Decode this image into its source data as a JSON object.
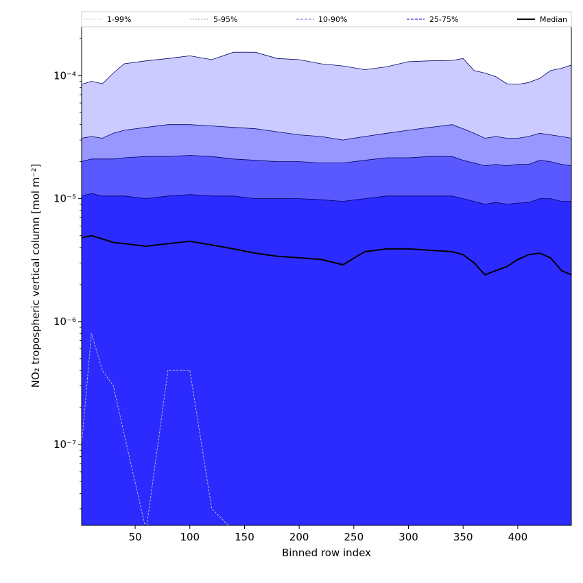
{
  "chart_data": {
    "type": "area",
    "xlabel": "Binned row index",
    "ylabel": "NO₂ tropospheric vertical column [mol m⁻²]",
    "xlim": [
      1,
      449
    ],
    "ylim": [
      2.2e-08,
      0.00025
    ],
    "yscale": "log",
    "x_ticks": [
      50,
      100,
      150,
      200,
      250,
      300,
      350,
      400
    ],
    "x_tick_labels": [
      "50",
      "100",
      "150",
      "200",
      "250",
      "300",
      "350",
      "400"
    ],
    "y_ticks": [
      1e-07,
      1e-06,
      1e-05,
      0.0001
    ],
    "y_tick_labels": [
      "10⁻⁷",
      "10⁻⁶",
      "10⁻⁵",
      "10⁻⁴"
    ],
    "grid": false,
    "legend_position": "top",
    "x_samples": [
      1,
      10,
      20,
      30,
      40,
      60,
      80,
      100,
      120,
      140,
      160,
      180,
      200,
      220,
      240,
      260,
      280,
      300,
      320,
      340,
      350,
      360,
      370,
      380,
      390,
      400,
      410,
      420,
      430,
      440,
      449
    ],
    "series": [
      {
        "name": "1-99%",
        "color": "#cbcbff",
        "line_color": "#bbbbbb",
        "upper": [
          8.5e-05,
          9e-05,
          8.6e-05,
          0.000105,
          0.000125,
          0.000132,
          0.000138,
          0.000145,
          0.000135,
          0.000155,
          0.000155,
          0.000138,
          0.000135,
          0.000125,
          0.00012,
          0.000112,
          0.000118,
          0.00013,
          0.000132,
          0.000133,
          0.000138,
          0.00011,
          0.000105,
          9.8e-05,
          8.6e-05,
          8.5e-05,
          8.8e-05,
          9.5e-05,
          0.00011,
          0.000115,
          0.000122
        ],
        "lower": [
          1e-07,
          8e-07,
          4e-07,
          3e-07,
          1.2e-07,
          2e-08,
          4e-07,
          4e-07,
          3e-08,
          2e-08,
          2e-08,
          2e-08,
          2e-08,
          2e-08,
          2e-08,
          2e-08,
          2e-08,
          2e-08,
          2e-08,
          2e-08,
          2e-08,
          2e-08,
          2e-08,
          2e-08,
          2e-08,
          2e-08,
          2e-08,
          2e-08,
          2e-08,
          2e-08,
          2e-08
        ]
      },
      {
        "name": "5-95%",
        "color": "#9797ff",
        "line_color": "#9999aa",
        "upper": [
          3.1e-05,
          3.2e-05,
          3.1e-05,
          3.4e-05,
          3.6e-05,
          3.8e-05,
          4e-05,
          4e-05,
          3.9e-05,
          3.8e-05,
          3.7e-05,
          3.5e-05,
          3.3e-05,
          3.2e-05,
          3e-05,
          3.2e-05,
          3.4e-05,
          3.6e-05,
          3.8e-05,
          4e-05,
          3.7e-05,
          3.4e-05,
          3.1e-05,
          3.2e-05,
          3.1e-05,
          3.1e-05,
          3.2e-05,
          3.4e-05,
          3.3e-05,
          3.2e-05,
          3.1e-05
        ]
      },
      {
        "name": "10-90%",
        "color": "#5959ff",
        "line_color": "#8888ee",
        "upper": [
          2e-05,
          2.1e-05,
          2.1e-05,
          2.1e-05,
          2.15e-05,
          2.2e-05,
          2.2e-05,
          2.25e-05,
          2.2e-05,
          2.1e-05,
          2.05e-05,
          2e-05,
          2e-05,
          1.95e-05,
          1.95e-05,
          2.05e-05,
          2.15e-05,
          2.15e-05,
          2.2e-05,
          2.2e-05,
          2.05e-05,
          1.95e-05,
          1.85e-05,
          1.9e-05,
          1.85e-05,
          1.9e-05,
          1.9e-05,
          2.05e-05,
          2e-05,
          1.9e-05,
          1.85e-05
        ]
      },
      {
        "name": "25-75%",
        "color": "#2b2bff",
        "line_color": "#5555dd",
        "upper": [
          1.05e-05,
          1.1e-05,
          1.05e-05,
          1.05e-05,
          1.05e-05,
          1e-05,
          1.05e-05,
          1.08e-05,
          1.05e-05,
          1.05e-05,
          1e-05,
          1e-05,
          1e-05,
          9.8e-06,
          9.5e-06,
          1e-05,
          1.05e-05,
          1.05e-05,
          1.05e-05,
          1.05e-05,
          1e-05,
          9.5e-06,
          9e-06,
          9.3e-06,
          9e-06,
          9.2e-06,
          9.3e-06,
          1e-05,
          1e-05,
          9.5e-06,
          9.5e-06
        ]
      },
      {
        "name": "Median",
        "color": "#000000",
        "values": [
          4.8e-06,
          5e-06,
          4.7e-06,
          4.4e-06,
          4.3e-06,
          4.1e-06,
          4.3e-06,
          4.5e-06,
          4.2e-06,
          3.9e-06,
          3.6e-06,
          3.4e-06,
          3.3e-06,
          3.2e-06,
          2.9e-06,
          3.7e-06,
          3.9e-06,
          3.9e-06,
          3.8e-06,
          3.7e-06,
          3.5e-06,
          3e-06,
          2.4e-06,
          2.6e-06,
          2.8e-06,
          3.2e-06,
          3.5e-06,
          3.6e-06,
          3.3e-06,
          2.6e-06,
          2.4e-06
        ]
      }
    ]
  }
}
